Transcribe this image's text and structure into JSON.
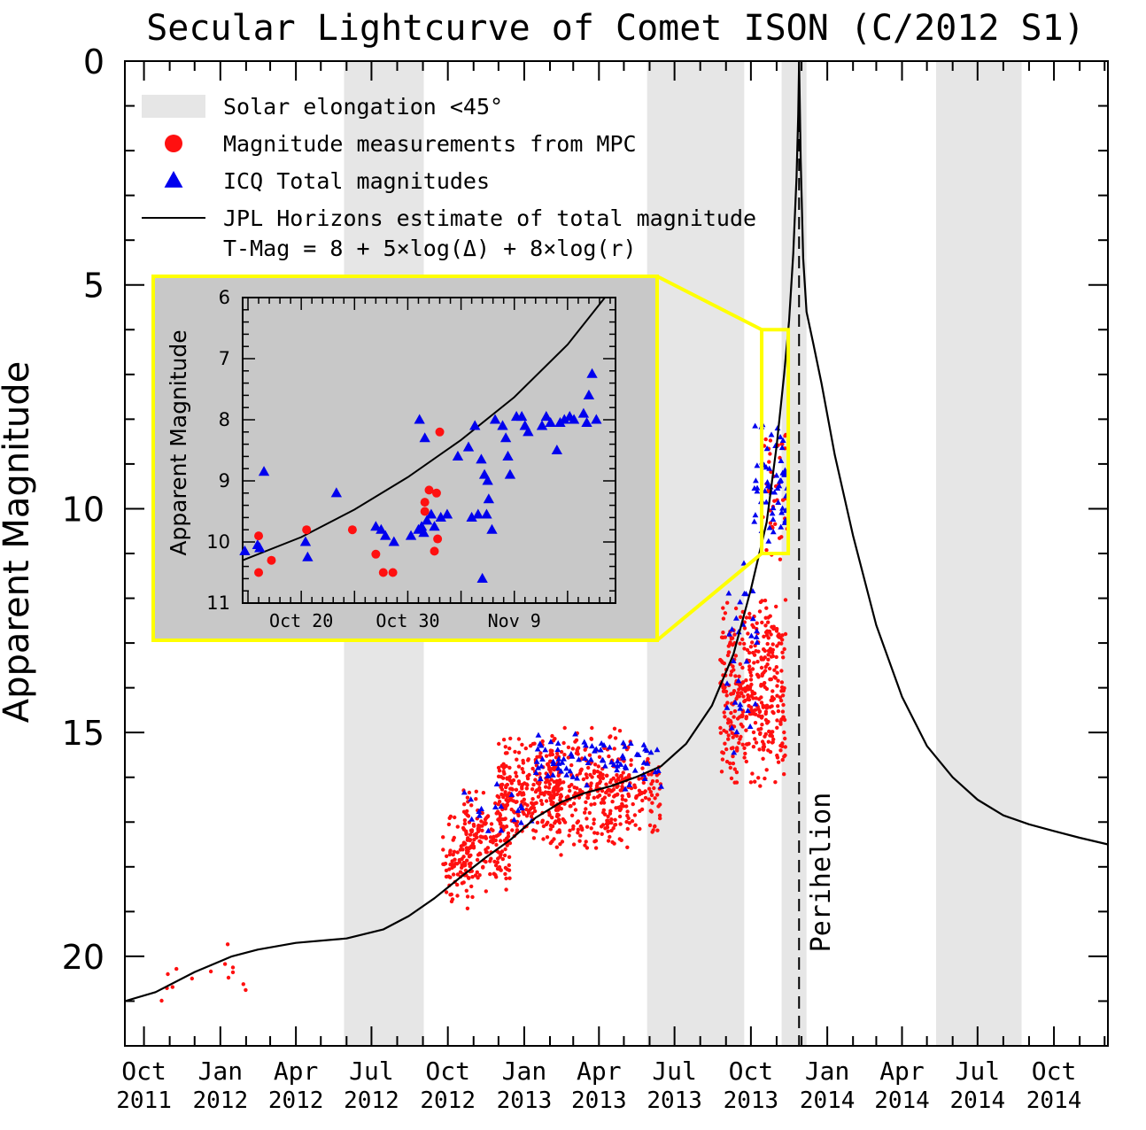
{
  "chart_data": {
    "type": "scatter",
    "title": "Secular Lightcurve of Comet ISON (C/2012 S1)",
    "ylabel": "Apparent Magnitude",
    "y_inverted": true,
    "ylim": [
      0,
      22
    ],
    "y_ticks": [
      "0",
      "5",
      "10",
      "15",
      "20"
    ],
    "xlim": [
      "2011-09-08",
      "2014-12-05"
    ],
    "x_ticks": [
      {
        "month": "Oct",
        "year": "2011",
        "date": "2011-10-01"
      },
      {
        "month": "Jan",
        "year": "2012",
        "date": "2012-01-01"
      },
      {
        "month": "Apr",
        "year": "2012",
        "date": "2012-04-01"
      },
      {
        "month": "Jul",
        "year": "2012",
        "date": "2012-07-01"
      },
      {
        "month": "Oct",
        "year": "2012",
        "date": "2012-10-01"
      },
      {
        "month": "Jan",
        "year": "2013",
        "date": "2013-01-01"
      },
      {
        "month": "Apr",
        "year": "2013",
        "date": "2013-04-01"
      },
      {
        "month": "Jul",
        "year": "2013",
        "date": "2013-07-01"
      },
      {
        "month": "Oct",
        "year": "2013",
        "date": "2013-10-01"
      },
      {
        "month": "Jan",
        "year": "2014",
        "date": "2014-01-01"
      },
      {
        "month": "Apr",
        "year": "2014",
        "date": "2014-04-01"
      },
      {
        "month": "Jul",
        "year": "2014",
        "date": "2014-07-01"
      },
      {
        "month": "Oct",
        "year": "2014",
        "date": "2014-10-01"
      }
    ],
    "shaded_bands": [
      {
        "start": "2012-05-29",
        "end": "2012-09-02"
      },
      {
        "start": "2013-05-29",
        "end": "2013-09-23"
      },
      {
        "start": "2013-11-07",
        "end": "2013-12-07"
      },
      {
        "start": "2014-05-12",
        "end": "2014-08-23"
      }
    ],
    "perihelion": {
      "date": "2013-11-28",
      "label": "Perihelion"
    },
    "legend": {
      "placement": "top-left",
      "entries": [
        {
          "kind": "band",
          "label": "Solar elongation <45°"
        },
        {
          "kind": "circle",
          "label": "Magnitude measurements from MPC",
          "color": "#ff1010"
        },
        {
          "kind": "triangle",
          "label": "ICQ Total magnitudes",
          "color": "#0000ee"
        },
        {
          "kind": "line",
          "label": "JPL Horizons estimate of total magnitude"
        }
      ],
      "formula": "T-Mag = 8  + 5×log(Δ) + 8×log(r)"
    },
    "series": [
      {
        "name": "JPL Horizons estimate of total magnitude",
        "kind": "line",
        "color": "#000000",
        "points": [
          [
            "2011-09-08",
            21.0
          ],
          [
            "2011-10-15",
            20.8
          ],
          [
            "2011-12-01",
            20.35
          ],
          [
            "2012-01-15",
            20.0
          ],
          [
            "2012-02-15",
            19.85
          ],
          [
            "2012-04-01",
            19.7
          ],
          [
            "2012-06-01",
            19.6
          ],
          [
            "2012-07-15",
            19.4
          ],
          [
            "2012-08-15",
            19.1
          ],
          [
            "2012-09-15",
            18.7
          ],
          [
            "2012-10-15",
            18.25
          ],
          [
            "2012-11-15",
            17.8
          ],
          [
            "2012-12-15",
            17.4
          ],
          [
            "2013-01-15",
            16.9
          ],
          [
            "2013-02-15",
            16.55
          ],
          [
            "2013-03-15",
            16.35
          ],
          [
            "2013-04-15",
            16.2
          ],
          [
            "2013-05-15",
            16.0
          ],
          [
            "2013-06-15",
            15.75
          ],
          [
            "2013-07-15",
            15.25
          ],
          [
            "2013-08-15",
            14.4
          ],
          [
            "2013-09-10",
            13.25
          ],
          [
            "2013-10-01",
            11.8
          ],
          [
            "2013-10-20",
            10.3
          ],
          [
            "2013-11-01",
            8.6
          ],
          [
            "2013-11-10",
            7.0
          ],
          [
            "2013-11-16",
            5.8
          ],
          [
            "2013-11-21",
            4.3
          ],
          [
            "2013-11-25",
            2.6
          ],
          [
            "2013-11-27",
            1.2
          ],
          [
            "2013-11-28",
            0.0
          ],
          [
            "2013-11-30",
            2.2
          ],
          [
            "2013-12-03",
            4.4
          ],
          [
            "2013-12-07",
            5.6
          ],
          [
            "2013-12-15",
            6.3
          ],
          [
            "2013-12-25",
            7.2
          ],
          [
            "2014-01-10",
            8.8
          ],
          [
            "2014-02-01",
            10.6
          ],
          [
            "2014-03-01",
            12.6
          ],
          [
            "2014-04-01",
            14.2
          ],
          [
            "2014-05-01",
            15.3
          ],
          [
            "2014-06-01",
            16.0
          ],
          [
            "2014-07-01",
            16.5
          ],
          [
            "2014-08-01",
            16.85
          ],
          [
            "2014-09-01",
            17.05
          ],
          [
            "2014-10-01",
            17.2
          ],
          [
            "2014-11-01",
            17.35
          ],
          [
            "2014-12-05",
            17.5
          ]
        ]
      },
      {
        "name": "Magnitude measurements from MPC",
        "kind": "scatter-dense",
        "color": "#ff1010",
        "clusters": [
          {
            "x_range": [
              "2011-10-01",
              "2012-02-01"
            ],
            "y_range": [
              19.4,
              21.4
            ],
            "count": 14
          },
          {
            "x_range": [
              "2012-09-25",
              "2012-10-31"
            ],
            "y_range": [
              16.6,
              19.2
            ],
            "count": 90
          },
          {
            "x_range": [
              "2012-10-20",
              "2012-12-15"
            ],
            "y_range": [
              16.2,
              18.6
            ],
            "count": 170
          },
          {
            "x_range": [
              "2012-12-01",
              "2013-02-15"
            ],
            "y_range": [
              15.0,
              17.6
            ],
            "count": 260
          },
          {
            "x_range": [
              "2013-02-01",
              "2013-05-10"
            ],
            "y_range": [
              14.8,
              17.8
            ],
            "count": 320
          },
          {
            "x_range": [
              "2013-05-10",
              "2013-06-15"
            ],
            "y_range": [
              15.4,
              17.3
            ],
            "count": 60
          },
          {
            "x_range": [
              "2013-08-25",
              "2013-11-12"
            ],
            "y_range": [
              11.8,
              16.4
            ],
            "count": 420
          },
          {
            "x_range": [
              "2013-10-15",
              "2013-11-14"
            ],
            "y_range": [
              8.0,
              11.5
            ],
            "count": 40
          }
        ]
      },
      {
        "name": "ICQ Total magnitudes",
        "kind": "scatter-dense",
        "color": "#0000ee",
        "clusters": [
          {
            "x_range": [
              "2012-10-20",
              "2013-01-10"
            ],
            "y_range": [
              16.0,
              17.5
            ],
            "count": 18
          },
          {
            "x_range": [
              "2013-01-15",
              "2013-06-15"
            ],
            "y_range": [
              14.9,
              16.4
            ],
            "count": 80
          },
          {
            "x_range": [
              "2013-09-01",
              "2013-10-10"
            ],
            "y_range": [
              10.8,
              15.8
            ],
            "count": 30
          },
          {
            "x_range": [
              "2013-10-05",
              "2013-11-14"
            ],
            "y_range": [
              7.8,
              11.2
            ],
            "count": 60
          }
        ]
      }
    ],
    "inset": {
      "source_box": {
        "x_range": [
          "2013-10-14",
          "2013-11-15"
        ],
        "y_range": [
          6,
          11
        ]
      },
      "ylabel": "Apparent Magnitude",
      "ylim": [
        6,
        11
      ],
      "y_ticks": [
        "6",
        "7",
        "8",
        "9",
        "10",
        "11"
      ],
      "xlim": [
        14.5,
        49.5
      ],
      "x_ticks": [
        {
          "label": "Oct 20",
          "day": 20.0
        },
        {
          "label": "Oct 30",
          "day": 30.0
        },
        {
          "label": "Nov 9",
          "day": 40.0
        }
      ],
      "background": "#c8c8c8",
      "border": "#ffff00",
      "line_points": [
        [
          14.5,
          10.3
        ],
        [
          20,
          9.92
        ],
        [
          25,
          9.47
        ],
        [
          30,
          8.94
        ],
        [
          35,
          8.33
        ],
        [
          40,
          7.63
        ],
        [
          45,
          6.77
        ],
        [
          48.5,
          6.0
        ]
      ],
      "mpc_points": [
        [
          16.0,
          9.9
        ],
        [
          16.0,
          10.5
        ],
        [
          17.2,
          10.3
        ],
        [
          20.5,
          9.8
        ],
        [
          24.8,
          9.8
        ],
        [
          27.0,
          10.2
        ],
        [
          27.7,
          10.5
        ],
        [
          28.6,
          10.5
        ],
        [
          31.6,
          9.35
        ],
        [
          31.6,
          9.5
        ],
        [
          32.0,
          9.15
        ],
        [
          32.7,
          9.2
        ],
        [
          32.5,
          10.15
        ],
        [
          32.8,
          9.95
        ],
        [
          33.0,
          8.2
        ]
      ],
      "icq_points": [
        [
          14.7,
          10.15
        ],
        [
          16.5,
          8.85
        ],
        [
          15.9,
          10.05
        ],
        [
          16.1,
          10.1
        ],
        [
          20.4,
          10.0
        ],
        [
          20.6,
          10.25
        ],
        [
          23.3,
          9.2
        ],
        [
          27.0,
          9.75
        ],
        [
          27.5,
          9.8
        ],
        [
          27.9,
          9.9
        ],
        [
          28.7,
          10.0
        ],
        [
          30.3,
          9.9
        ],
        [
          31.0,
          9.8
        ],
        [
          31.3,
          9.75
        ],
        [
          31.5,
          9.85
        ],
        [
          31.8,
          9.65
        ],
        [
          32.2,
          9.55
        ],
        [
          32.5,
          9.75
        ],
        [
          33.1,
          9.6
        ],
        [
          33.7,
          9.55
        ],
        [
          31.1,
          8.0
        ],
        [
          31.6,
          8.3
        ],
        [
          34.7,
          8.6
        ],
        [
          35.7,
          8.45
        ],
        [
          36.0,
          9.6
        ],
        [
          36.3,
          8.1
        ],
        [
          36.6,
          9.55
        ],
        [
          36.9,
          8.65
        ],
        [
          37.2,
          8.9
        ],
        [
          37.5,
          9.0
        ],
        [
          37.6,
          9.3
        ],
        [
          37.4,
          9.55
        ],
        [
          37.9,
          9.8
        ],
        [
          37.0,
          10.6
        ],
        [
          38.2,
          8.0
        ],
        [
          38.9,
          8.1
        ],
        [
          39.4,
          8.6
        ],
        [
          39.6,
          8.9
        ],
        [
          39.2,
          8.3
        ],
        [
          40.2,
          7.95
        ],
        [
          40.7,
          7.95
        ],
        [
          41.0,
          8.1
        ],
        [
          41.3,
          8.2
        ],
        [
          42.6,
          8.1
        ],
        [
          43.0,
          7.95
        ],
        [
          43.4,
          8.05
        ],
        [
          44.0,
          8.5
        ],
        [
          44.3,
          8.05
        ],
        [
          44.7,
          8.0
        ],
        [
          45.2,
          7.95
        ],
        [
          45.6,
          8.0
        ],
        [
          46.5,
          7.9
        ],
        [
          46.8,
          8.05
        ],
        [
          47.0,
          7.6
        ],
        [
          47.3,
          7.25
        ],
        [
          47.7,
          8.0
        ]
      ]
    }
  }
}
